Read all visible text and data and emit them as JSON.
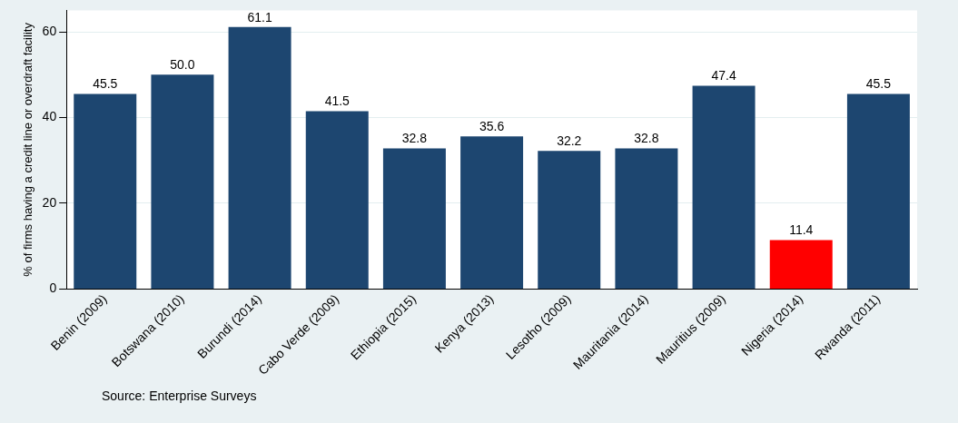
{
  "chart_data": {
    "type": "bar",
    "ylabel": "% of firms having a credit line or overdraft facility",
    "categories": [
      "Benin (2009)",
      "Botswana (2010)",
      "Burundi (2014)",
      "Cabo Verde (2009)",
      "Ethiopia (2015)",
      "Kenya (2013)",
      "Lesotho (2009)",
      "Mauritania (2014)",
      "Mauritius (2009)",
      "Nigeria (2014)",
      "Rwanda (2011)"
    ],
    "values": [
      45.5,
      50.0,
      61.1,
      41.5,
      32.8,
      35.6,
      32.2,
      32.8,
      47.4,
      11.4,
      45.5
    ],
    "colors": [
      "#1d4670",
      "#1d4670",
      "#1d4670",
      "#1d4670",
      "#1d4670",
      "#1d4670",
      "#1d4670",
      "#1d4670",
      "#1d4670",
      "#ff0000",
      "#1d4670"
    ],
    "value_labels": [
      "45.5",
      "50.0",
      "61.1",
      "41.5",
      "32.8",
      "35.6",
      "32.2",
      "32.8",
      "47.4",
      "11.4",
      "45.5"
    ],
    "ylim": [
      0,
      65
    ],
    "yticks": [
      0,
      20,
      40,
      60
    ],
    "grid": "y",
    "legend": false,
    "annotations": [
      "Source: Enterprise Surveys"
    ]
  }
}
